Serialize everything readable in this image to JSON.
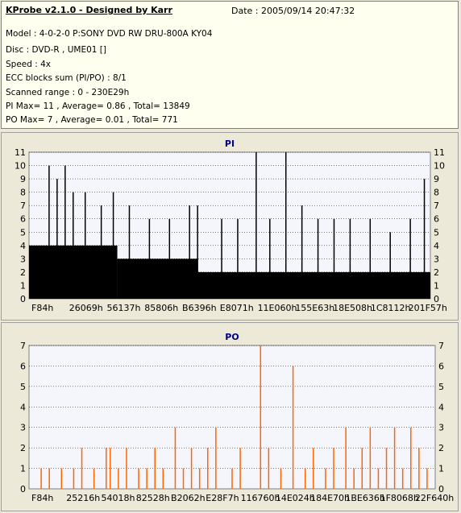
{
  "header": {
    "title": "KProbe v2.1.0 - Designed by Karr",
    "date": "Date : 2005/09/14 20:47:32",
    "lines": [
      "Model : 4-0-2-0 P:SONY     DVD RW DRU-800A  KY04",
      "Disc : DVD-R , UME01 []",
      "Speed : 4x",
      "ECC blocks sum (PI/PO) : 8/1",
      "Scanned range : 0 - 230E29h",
      "PI Max= 11 , Average= 0.86 , Total= 13849",
      "PO Max= 7 , Average= 0.01 , Total= 771"
    ]
  },
  "colors": {
    "pi_bar": "#000000",
    "po_bar": "#ff6600",
    "plot_bg": "#f5f5fc",
    "grid": "#000000",
    "title": "#000080"
  },
  "chart_data": [
    {
      "type": "bar",
      "title": "PI",
      "ylim": [
        0,
        11
      ],
      "yticks": [
        0,
        1,
        2,
        3,
        4,
        5,
        6,
        7,
        8,
        9,
        10,
        11
      ],
      "xticks": [
        "F84h",
        "26069h",
        "56137h",
        "85806h",
        "B6396h",
        "E8071h",
        "11E060h",
        "155E63h",
        "18E508h",
        "1C8112h",
        "201F57h"
      ],
      "grid": true,
      "baseline_by_segment": [
        {
          "from": 0.0,
          "to": 0.22,
          "level": 4
        },
        {
          "from": 0.22,
          "to": 0.42,
          "level": 3
        },
        {
          "from": 0.42,
          "to": 1.0,
          "level": 2
        }
      ],
      "spikes": [
        {
          "x": 0.05,
          "value": 10
        },
        {
          "x": 0.07,
          "value": 9
        },
        {
          "x": 0.09,
          "value": 10
        },
        {
          "x": 0.11,
          "value": 8
        },
        {
          "x": 0.14,
          "value": 8
        },
        {
          "x": 0.18,
          "value": 7
        },
        {
          "x": 0.21,
          "value": 8
        },
        {
          "x": 0.25,
          "value": 7
        },
        {
          "x": 0.3,
          "value": 6
        },
        {
          "x": 0.35,
          "value": 6
        },
        {
          "x": 0.4,
          "value": 7
        },
        {
          "x": 0.42,
          "value": 7
        },
        {
          "x": 0.48,
          "value": 6
        },
        {
          "x": 0.52,
          "value": 6
        },
        {
          "x": 0.566,
          "value": 11
        },
        {
          "x": 0.6,
          "value": 6
        },
        {
          "x": 0.64,
          "value": 11
        },
        {
          "x": 0.68,
          "value": 7
        },
        {
          "x": 0.72,
          "value": 6
        },
        {
          "x": 0.76,
          "value": 6
        },
        {
          "x": 0.8,
          "value": 6
        },
        {
          "x": 0.85,
          "value": 6
        },
        {
          "x": 0.9,
          "value": 5
        },
        {
          "x": 0.95,
          "value": 6
        },
        {
          "x": 0.985,
          "value": 9
        }
      ]
    },
    {
      "type": "bar",
      "title": "PO",
      "ylim": [
        0,
        7
      ],
      "yticks": [
        0,
        1,
        2,
        3,
        4,
        5,
        6,
        7
      ],
      "xticks": [
        "F84h",
        "25216h",
        "54018h",
        "82528h",
        "B2062h",
        "E28F7h",
        "116760h",
        "14E024h",
        "184E70h",
        "1BE636h",
        "1F8068h",
        "22F640h"
      ],
      "grid": true,
      "bars": [
        {
          "x": 0.03,
          "value": 1
        },
        {
          "x": 0.05,
          "value": 1
        },
        {
          "x": 0.08,
          "value": 1
        },
        {
          "x": 0.11,
          "value": 1
        },
        {
          "x": 0.13,
          "value": 2
        },
        {
          "x": 0.16,
          "value": 1
        },
        {
          "x": 0.19,
          "value": 2
        },
        {
          "x": 0.2,
          "value": 2
        },
        {
          "x": 0.22,
          "value": 1
        },
        {
          "x": 0.24,
          "value": 2
        },
        {
          "x": 0.27,
          "value": 1
        },
        {
          "x": 0.29,
          "value": 1
        },
        {
          "x": 0.31,
          "value": 2
        },
        {
          "x": 0.33,
          "value": 1
        },
        {
          "x": 0.36,
          "value": 3
        },
        {
          "x": 0.38,
          "value": 1
        },
        {
          "x": 0.4,
          "value": 2
        },
        {
          "x": 0.42,
          "value": 1
        },
        {
          "x": 0.44,
          "value": 2
        },
        {
          "x": 0.46,
          "value": 3
        },
        {
          "x": 0.5,
          "value": 1
        },
        {
          "x": 0.52,
          "value": 2
        },
        {
          "x": 0.57,
          "value": 7
        },
        {
          "x": 0.59,
          "value": 2
        },
        {
          "x": 0.62,
          "value": 1
        },
        {
          "x": 0.65,
          "value": 6
        },
        {
          "x": 0.68,
          "value": 1
        },
        {
          "x": 0.7,
          "value": 2
        },
        {
          "x": 0.73,
          "value": 1
        },
        {
          "x": 0.75,
          "value": 2
        },
        {
          "x": 0.78,
          "value": 3
        },
        {
          "x": 0.8,
          "value": 1
        },
        {
          "x": 0.82,
          "value": 2
        },
        {
          "x": 0.84,
          "value": 3
        },
        {
          "x": 0.86,
          "value": 1
        },
        {
          "x": 0.88,
          "value": 2
        },
        {
          "x": 0.9,
          "value": 3
        },
        {
          "x": 0.92,
          "value": 1
        },
        {
          "x": 0.94,
          "value": 3
        },
        {
          "x": 0.96,
          "value": 2
        },
        {
          "x": 0.98,
          "value": 1
        }
      ]
    }
  ]
}
